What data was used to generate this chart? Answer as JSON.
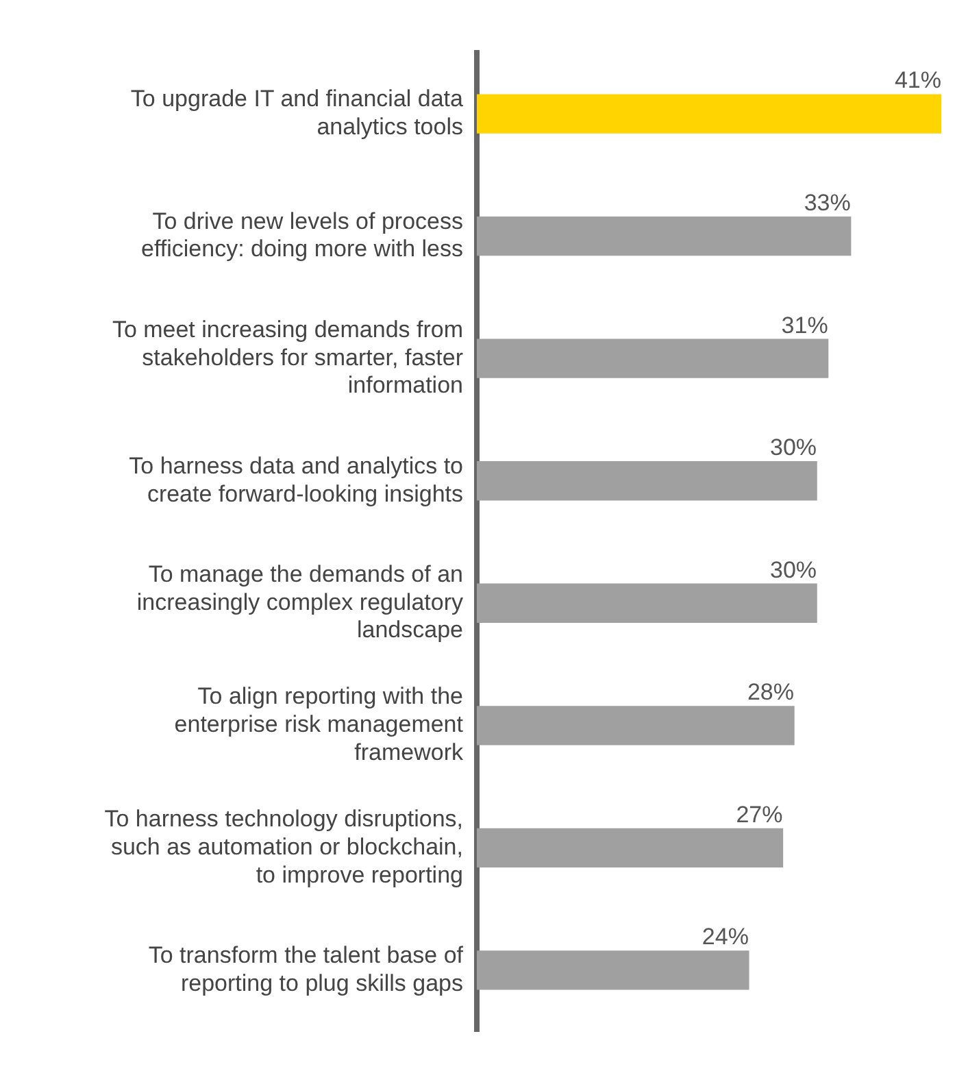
{
  "chart_data": {
    "type": "bar",
    "orientation": "horizontal",
    "categories": [
      "To upgrade IT and financial data analytics tools",
      "To drive new levels of process efficiency: doing more with less",
      "To meet increasing demands from stakeholders for smarter, faster information",
      "To harness data and analytics to create forward-looking insights",
      "To manage the demands of an increasingly complex regulatory landscape",
      "To align reporting with the enterprise risk management framework",
      "To harness technology disruptions, such as automation or blockchain, to improve reporting",
      "To transform the talent base of reporting to plug skills gaps"
    ],
    "values": [
      41,
      33,
      31,
      30,
      30,
      28,
      27,
      24
    ],
    "colors": [
      "#ffd400",
      "#a0a0a0",
      "#a0a0a0",
      "#a0a0a0",
      "#a0a0a0",
      "#a0a0a0",
      "#a0a0a0",
      "#a0a0a0"
    ],
    "value_labels": [
      "41%",
      "33%",
      "31%",
      "30%",
      "30%",
      "28%",
      "27%",
      "24%"
    ],
    "legend": false
  }
}
